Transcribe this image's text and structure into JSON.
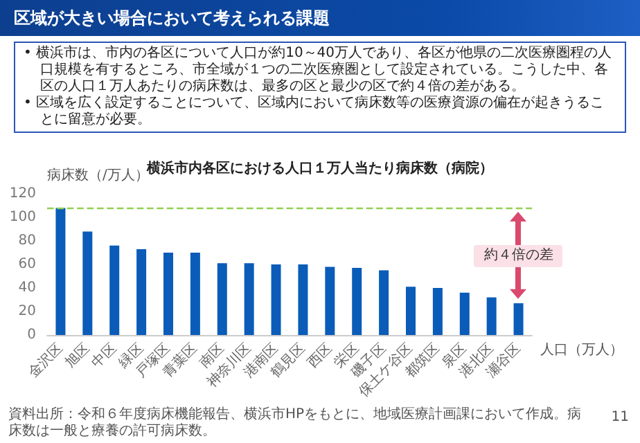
{
  "chart_data": {
    "type": "bar",
    "title": "区域が大きい場合において考えられる課題",
    "subtitle": "横浜市内各区における人口１万人当たり病床数（病院）",
    "ylabel": "病床数（/万人）",
    "xlabel": "人口（万人）",
    "categories": [
      "金沢区",
      "旭区",
      "中区",
      "緑区",
      "戸塚区",
      "青葉区",
      "南区",
      "神奈川区",
      "港南区",
      "鶴見区",
      "西区",
      "栄区",
      "磯子区",
      "保土ケ谷区",
      "都筑区",
      "泉区",
      "港北区",
      "瀬谷区"
    ],
    "values": [
      108,
      88,
      76,
      73,
      70,
      70,
      61,
      61,
      60,
      60,
      58,
      57,
      55,
      41,
      40,
      36,
      32,
      27
    ],
    "color": "#0a5cb8",
    "ylim": [
      0,
      120
    ],
    "yticks": [
      0,
      20,
      40,
      60,
      80,
      100,
      120
    ],
    "grid": false,
    "ref_lines": [
      {
        "axis": "y",
        "value": 108,
        "color": "#92d050",
        "line_style": "dashed"
      }
    ],
    "annotations": [
      "• 横浜市は、市内の各区について人口が約10～40万人であり、各区が他県の二次医療圏程の人口規模を有するところ、市全域が１つの二次医療圏として設定されている。こうした中、各区の人口１万人あたりの病床数は、最多の区と最少の区で約４倍の差がある。",
      "• 区域を広く設定することについて、区域内において病床数等の医療資源の偏在が起きうることに留意が必要。",
      "資料出所：令和６年度病床機能報告、横浜市HPをもとに、地域医療計画課において作成。病床数は一般と療養の許可病床数。",
      "11",
      "約４倍の差"
    ]
  }
}
